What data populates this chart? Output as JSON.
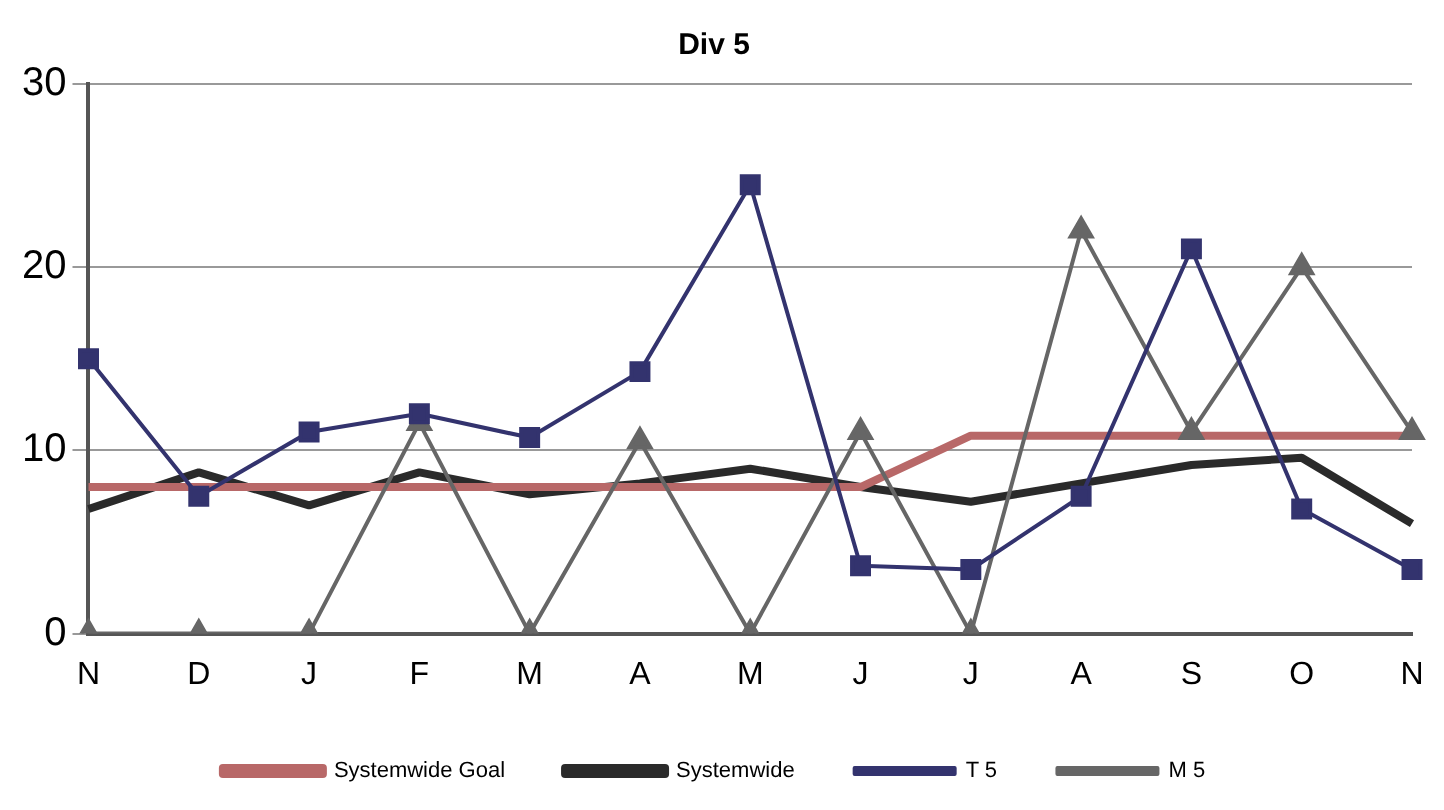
{
  "chart_data": {
    "type": "line",
    "title": "Div 5",
    "categories": [
      "N",
      "D",
      "J",
      "F",
      "M",
      "A",
      "M",
      "J",
      "J",
      "A",
      "S",
      "O",
      "N"
    ],
    "ylim": [
      0,
      30
    ],
    "yticks": [
      0,
      10,
      20,
      30
    ],
    "grid": "y",
    "legend": "bottom",
    "series": [
      {
        "name": "Systemwide Goal",
        "color": "#b86868",
        "marker": "none",
        "values": [
          8,
          8,
          8,
          8,
          8,
          8,
          8,
          8,
          10.8,
          10.8,
          10.8,
          10.8,
          10.8
        ]
      },
      {
        "name": "Systemwide",
        "color": "#2a2a2a",
        "marker": "none",
        "values": [
          6.8,
          8.8,
          7,
          8.8,
          7.6,
          8.2,
          9,
          8,
          7.2,
          8.2,
          9.2,
          9.6,
          6
        ]
      },
      {
        "name": "T 5",
        "color": "#33336e",
        "marker": "square",
        "values": [
          15,
          7.5,
          11,
          12,
          10.7,
          14.3,
          24.5,
          3.7,
          3.5,
          7.5,
          21,
          6.8,
          3.5
        ]
      },
      {
        "name": "M 5",
        "color": "#666666",
        "marker": "triangle",
        "values": [
          0,
          0,
          0,
          11.5,
          0,
          10.5,
          0,
          11,
          0,
          22,
          11,
          20,
          11
        ]
      }
    ]
  }
}
